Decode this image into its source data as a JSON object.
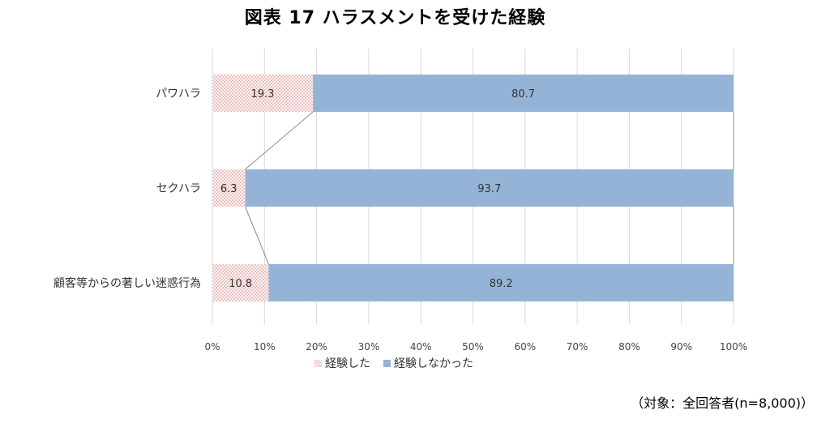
{
  "title": "図表 17 ハラスメントを受けた経験",
  "note": "（対象：全回答者(n=8,000)）",
  "chart_data": {
    "type": "bar",
    "orientation": "horizontal",
    "stacked": "100%",
    "categories": [
      "パワハラ",
      "セクハラ",
      "顧客等からの著しい迷惑行為"
    ],
    "series": [
      {
        "name": "経験した",
        "values": [
          19.3,
          6.3,
          10.8
        ],
        "color": "#e8b4b4",
        "pattern": "dotted"
      },
      {
        "name": "経験しなかった",
        "values": [
          80.7,
          93.7,
          89.2
        ],
        "color": "#95b3d7",
        "pattern": "solid"
      }
    ],
    "xlim": [
      0,
      100
    ],
    "xticks": [
      "0%",
      "10%",
      "20%",
      "30%",
      "40%",
      "50%",
      "60%",
      "70%",
      "80%",
      "90%",
      "100%"
    ],
    "grid": true,
    "series_lines": true,
    "legend": "bottom"
  }
}
